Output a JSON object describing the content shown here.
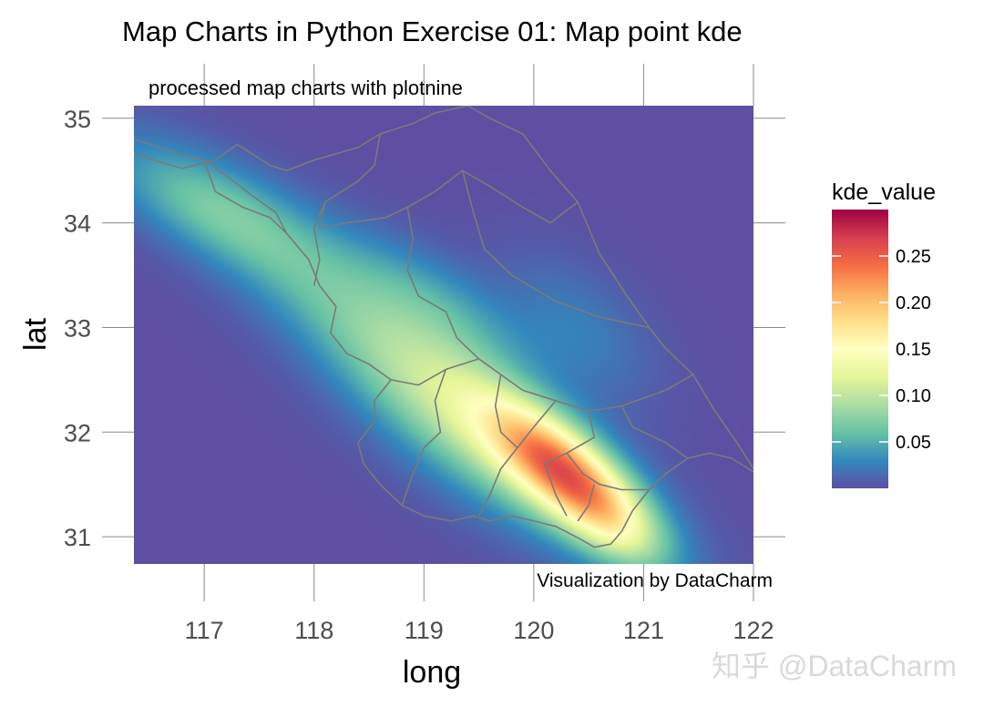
{
  "chart_data": {
    "type": "heatmap",
    "title": "Map Charts in Python Exercise 01: Map point kde",
    "subtitle": "processed map charts with plotnine",
    "caption": "Visualization by DataCharm",
    "xlabel": "long",
    "ylabel": "lat",
    "x_ticks": [
      117,
      118,
      119,
      120,
      121,
      122
    ],
    "y_ticks": [
      31,
      32,
      33,
      34,
      35
    ],
    "xlim": [
      116.36,
      122.0
    ],
    "ylim": [
      30.74,
      35.12
    ],
    "legend": {
      "title": "kde_value",
      "position": "right",
      "min": 0,
      "max": 0.3,
      "ticks": [
        0.05,
        0.1,
        0.15,
        0.2,
        0.25
      ],
      "tick_labels": [
        "0.05",
        "0.10",
        "0.15",
        "0.20",
        "0.25"
      ],
      "colors": [
        "#5e4fa2",
        "#3288bd",
        "#66c2a5",
        "#abdda4",
        "#e6f598",
        "#ffffbf",
        "#fee08b",
        "#fdae61",
        "#f46d43",
        "#d53e4f",
        "#9e0142"
      ]
    },
    "kde_components": [
      {
        "center_long": 120.32,
        "center_lat": 31.58,
        "sigma_major": 0.62,
        "sigma_minor": 0.24,
        "angle_deg": -42,
        "weight": 0.19
      },
      {
        "center_long": 119.5,
        "center_lat": 32.0,
        "sigma_major": 1.1,
        "sigma_minor": 0.38,
        "angle_deg": -38,
        "weight": 0.085
      },
      {
        "center_long": 118.6,
        "center_lat": 33.0,
        "sigma_major": 1.5,
        "sigma_minor": 0.34,
        "angle_deg": -36,
        "weight": 0.045
      },
      {
        "center_long": 117.1,
        "center_lat": 34.15,
        "sigma_major": 0.75,
        "sigma_minor": 0.3,
        "angle_deg": -28,
        "weight": 0.05
      },
      {
        "center_long": 119.1,
        "center_lat": 33.25,
        "sigma_major": 0.7,
        "sigma_minor": 0.28,
        "angle_deg": -35,
        "weight": 0.035
      },
      {
        "center_long": 120.4,
        "center_lat": 33.0,
        "sigma_major": 0.6,
        "sigma_minor": 0.35,
        "angle_deg": -45,
        "weight": 0.025
      },
      {
        "center_long": 120.75,
        "center_lat": 31.05,
        "sigma_major": 0.35,
        "sigma_minor": 0.2,
        "angle_deg": -40,
        "weight": 0.03
      }
    ],
    "boundary_color": "#7a7a7a",
    "boundaries": [
      [
        [
          116.36,
          34.66
        ],
        [
          116.6,
          34.58
        ],
        [
          116.8,
          34.52
        ],
        [
          117.1,
          34.6
        ],
        [
          117.3,
          34.75
        ],
        [
          117.6,
          34.55
        ],
        [
          117.75,
          34.5
        ],
        [
          118.0,
          34.6
        ],
        [
          118.4,
          34.72
        ],
        [
          118.6,
          34.85
        ],
        [
          118.9,
          34.95
        ],
        [
          119.1,
          35.05
        ],
        [
          119.4,
          35.12
        ],
        [
          119.6,
          35.0
        ],
        [
          119.9,
          34.85
        ],
        [
          120.15,
          34.5
        ],
        [
          120.4,
          34.2
        ],
        [
          120.6,
          33.7
        ],
        [
          120.85,
          33.3
        ],
        [
          121.05,
          33.0
        ],
        [
          121.2,
          32.8
        ],
        [
          121.45,
          32.55
        ],
        [
          121.65,
          32.2
        ],
        [
          121.85,
          31.9
        ],
        [
          122.0,
          31.65
        ]
      ],
      [
        [
          122.0,
          31.62
        ],
        [
          121.8,
          31.75
        ],
        [
          121.6,
          31.8
        ],
        [
          121.4,
          31.75
        ],
        [
          121.2,
          31.6
        ],
        [
          121.05,
          31.45
        ],
        [
          120.9,
          31.25
        ],
        [
          120.8,
          31.05
        ],
        [
          120.7,
          30.93
        ],
        [
          120.55,
          30.9
        ],
        [
          120.42,
          30.98
        ],
        [
          120.2,
          31.1
        ],
        [
          120.0,
          31.15
        ],
        [
          119.8,
          31.2
        ],
        [
          119.6,
          31.15
        ],
        [
          119.45,
          31.2
        ],
        [
          119.25,
          31.15
        ],
        [
          119.0,
          31.2
        ],
        [
          118.8,
          31.3
        ],
        [
          118.6,
          31.5
        ],
        [
          118.45,
          31.7
        ],
        [
          118.4,
          31.9
        ],
        [
          118.55,
          32.1
        ],
        [
          118.55,
          32.3
        ],
        [
          118.7,
          32.5
        ],
        [
          118.5,
          32.65
        ],
        [
          118.3,
          32.75
        ],
        [
          118.15,
          32.95
        ],
        [
          118.2,
          33.2
        ],
        [
          118.05,
          33.4
        ],
        [
          117.95,
          33.65
        ],
        [
          117.75,
          33.9
        ],
        [
          117.65,
          34.1
        ],
        [
          117.45,
          34.25
        ],
        [
          117.2,
          34.45
        ],
        [
          117.0,
          34.6
        ],
        [
          116.8,
          34.65
        ],
        [
          116.6,
          34.72
        ],
        [
          116.36,
          34.8
        ]
      ],
      [
        [
          117.0,
          34.6
        ],
        [
          117.1,
          34.3
        ],
        [
          117.35,
          34.15
        ],
        [
          117.6,
          34.05
        ],
        [
          117.75,
          33.9
        ]
      ],
      [
        [
          118.6,
          34.85
        ],
        [
          118.55,
          34.55
        ],
        [
          118.4,
          34.4
        ],
        [
          118.1,
          34.2
        ],
        [
          118.05,
          33.95
        ],
        [
          118.3,
          34.0
        ],
        [
          118.65,
          34.05
        ],
        [
          118.85,
          34.15
        ],
        [
          119.1,
          34.3
        ],
        [
          119.35,
          34.5
        ],
        [
          119.6,
          34.35
        ],
        [
          119.9,
          34.15
        ],
        [
          120.15,
          34.0
        ],
        [
          120.4,
          34.2
        ]
      ],
      [
        [
          118.1,
          34.2
        ],
        [
          118.0,
          33.95
        ],
        [
          118.05,
          33.65
        ],
        [
          118.0,
          33.4
        ]
      ],
      [
        [
          118.85,
          34.15
        ],
        [
          118.9,
          33.85
        ],
        [
          118.85,
          33.55
        ],
        [
          118.95,
          33.3
        ],
        [
          119.2,
          33.15
        ],
        [
          119.3,
          32.9
        ],
        [
          119.5,
          32.7
        ]
      ],
      [
        [
          119.35,
          34.5
        ],
        [
          119.45,
          34.1
        ],
        [
          119.55,
          33.75
        ],
        [
          119.8,
          33.5
        ],
        [
          120.2,
          33.25
        ],
        [
          120.6,
          33.1
        ],
        [
          121.05,
          33.0
        ]
      ],
      [
        [
          118.7,
          32.5
        ],
        [
          118.95,
          32.45
        ],
        [
          119.2,
          32.6
        ],
        [
          119.5,
          32.7
        ],
        [
          119.7,
          32.55
        ],
        [
          119.9,
          32.4
        ],
        [
          120.2,
          32.3
        ],
        [
          120.5,
          32.2
        ],
        [
          120.8,
          32.25
        ],
        [
          121.2,
          32.4
        ],
        [
          121.45,
          32.55
        ]
      ],
      [
        [
          119.2,
          32.6
        ],
        [
          119.1,
          32.3
        ],
        [
          119.15,
          32.0
        ],
        [
          119.0,
          31.85
        ],
        [
          118.9,
          31.6
        ],
        [
          118.8,
          31.3
        ]
      ],
      [
        [
          119.7,
          32.55
        ],
        [
          119.65,
          32.25
        ],
        [
          119.7,
          32.0
        ],
        [
          119.85,
          31.85
        ],
        [
          119.7,
          31.65
        ],
        [
          119.6,
          31.4
        ],
        [
          119.5,
          31.2
        ]
      ],
      [
        [
          120.2,
          32.3
        ],
        [
          120.0,
          32.05
        ],
        [
          119.85,
          31.85
        ]
      ],
      [
        [
          120.5,
          32.2
        ],
        [
          120.55,
          31.95
        ],
        [
          120.3,
          31.8
        ],
        [
          120.1,
          31.7
        ],
        [
          120.2,
          31.4
        ],
        [
          120.3,
          31.2
        ]
      ],
      [
        [
          120.3,
          31.8
        ],
        [
          120.45,
          31.6
        ],
        [
          120.6,
          31.5
        ],
        [
          120.8,
          31.45
        ],
        [
          121.05,
          31.45
        ]
      ],
      [
        [
          120.8,
          32.25
        ],
        [
          120.9,
          32.05
        ],
        [
          121.2,
          31.9
        ],
        [
          121.4,
          31.75
        ]
      ],
      [
        [
          120.55,
          31.5
        ],
        [
          120.5,
          31.3
        ],
        [
          120.4,
          31.15
        ]
      ]
    ],
    "watermark": "知乎 @DataCharm"
  }
}
